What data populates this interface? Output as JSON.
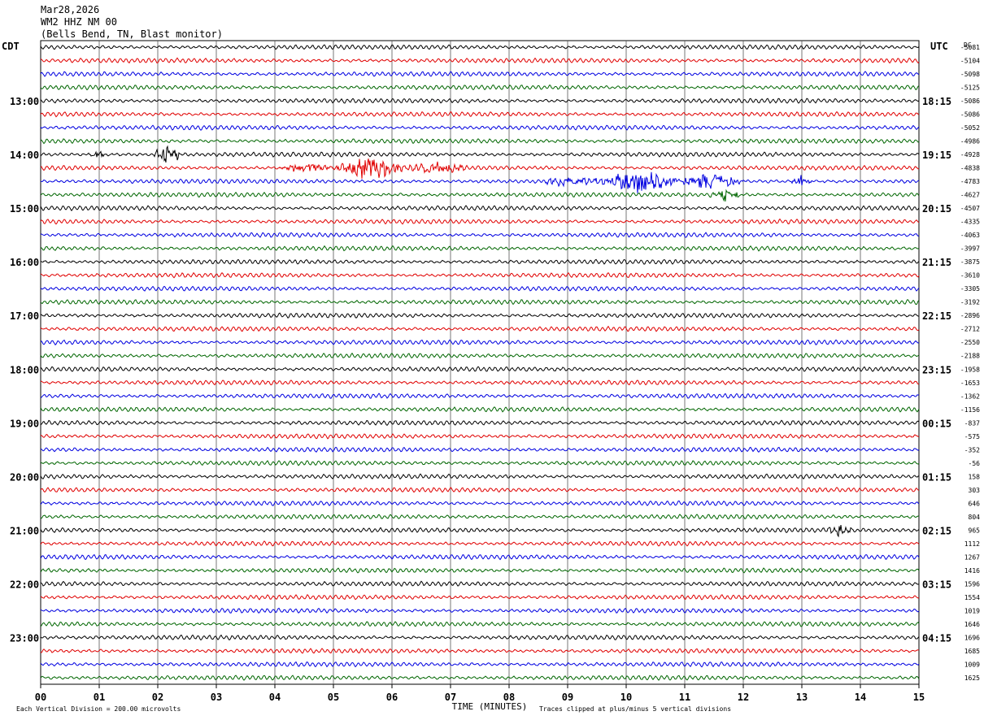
{
  "header": {
    "date": "Mar28,2026",
    "station": "WM2 HHZ NM 00",
    "location": "(Bells Bend, TN, Blast monitor)"
  },
  "chart_data": {
    "type": "line",
    "chart_kind": "helicorder",
    "left_timezone": "CDT",
    "right_timezone": "UTC",
    "dc_header": "DC",
    "left_hour_labels": [
      "13:00",
      "14:00",
      "15:00",
      "16:00",
      "17:00",
      "18:00",
      "19:00",
      "20:00",
      "21:00",
      "22:00",
      "23:00"
    ],
    "right_hour_labels": [
      "18:15",
      "19:15",
      "20:15",
      "21:15",
      "22:15",
      "23:15",
      "00:15",
      "01:15",
      "02:15",
      "03:15",
      "04:15"
    ],
    "x_ticks": [
      "00",
      "01",
      "02",
      "03",
      "04",
      "05",
      "06",
      "07",
      "08",
      "09",
      "10",
      "11",
      "12",
      "13",
      "14",
      "15"
    ],
    "xlabel": "TIME (MINUTES)",
    "xlim": [
      0,
      15
    ],
    "dc_offsets": [
      "-5081",
      "-5104",
      "-5098",
      "-5125",
      "-5086",
      "-5086",
      "-5052",
      "-4986",
      "-4928",
      "-4838",
      "-4783",
      "-4627",
      "-4507",
      "-4335",
      "-4063",
      "-3997",
      "-3875",
      "-3610",
      "-3305",
      "-3192",
      "-2896",
      "-2712",
      "-2550",
      "-2188",
      "-1958",
      "-1653",
      "-1362",
      "-1156",
      "-837",
      "-575",
      "-352",
      "-56",
      "158",
      "303",
      "646",
      "804",
      "965",
      "1112",
      "1267",
      "1416",
      "1596",
      "1554",
      "1019",
      "1646",
      "1696",
      "1685",
      "1009",
      "1625"
    ],
    "trace_colors": [
      "#000000",
      "#e00000",
      "#0000e0",
      "#006600"
    ],
    "events": [
      {
        "trace": 8,
        "start_min": 0.8,
        "end_min": 1.1,
        "amplitude": 0.35
      },
      {
        "trace": 8,
        "start_min": 1.9,
        "end_min": 2.4,
        "amplitude": 1.0
      },
      {
        "trace": 9,
        "start_min": 4.0,
        "end_min": 7.5,
        "amplitude": 0.9
      },
      {
        "trace": 10,
        "start_min": 8.5,
        "end_min": 12.2,
        "amplitude": 1.0
      },
      {
        "trace": 10,
        "start_min": 12.8,
        "end_min": 13.2,
        "amplitude": 0.6
      },
      {
        "trace": 11,
        "start_min": 11.4,
        "end_min": 12.0,
        "amplitude": 0.6
      },
      {
        "trace": 36,
        "start_min": 13.4,
        "end_min": 13.9,
        "amplitude": 0.5
      }
    ],
    "footer_left": "Each Vertical Division =  200.00 microvolts",
    "footer_right": "Traces clipped at plus/minus 5 vertical divisions",
    "grid": true
  }
}
